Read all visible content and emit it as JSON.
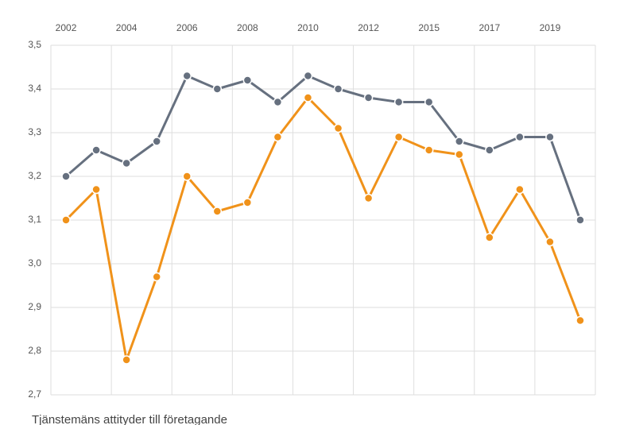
{
  "chart_data": {
    "type": "line",
    "caption": "Tjänstemäns attityder till företagande",
    "categories": [
      "2002",
      null,
      "2004",
      null,
      "2006",
      null,
      "2008",
      null,
      "2010",
      null,
      "2012",
      null,
      "2015",
      null,
      "2017",
      null,
      "2019",
      null
    ],
    "series": [
      {
        "color": "#66707f",
        "values": [
          3.2,
          3.26,
          3.23,
          3.28,
          3.43,
          3.4,
          3.42,
          3.37,
          3.43,
          3.4,
          3.38,
          3.37,
          3.37,
          3.28,
          3.26,
          3.29,
          3.29,
          3.1
        ]
      },
      {
        "color": "#f0921a",
        "values": [
          3.1,
          3.17,
          2.78,
          2.97,
          3.2,
          3.12,
          3.14,
          3.29,
          3.38,
          3.31,
          3.15,
          3.29,
          3.26,
          3.25,
          3.06,
          3.17,
          3.05,
          2.87
        ]
      }
    ],
    "ylim": [
      2.7,
      3.5
    ],
    "yticks": [
      {
        "value": 2.7,
        "label": "2,7"
      },
      {
        "value": 2.8,
        "label": "2,8"
      },
      {
        "value": 2.9,
        "label": "2,9"
      },
      {
        "value": 3.0,
        "label": "3,0"
      },
      {
        "value": 3.1,
        "label": "3,1"
      },
      {
        "value": 3.2,
        "label": "3,2"
      },
      {
        "value": 3.3,
        "label": "3,3"
      },
      {
        "value": 3.4,
        "label": "3,4"
      },
      {
        "value": 3.5,
        "label": "3,5"
      }
    ],
    "grid": true
  }
}
